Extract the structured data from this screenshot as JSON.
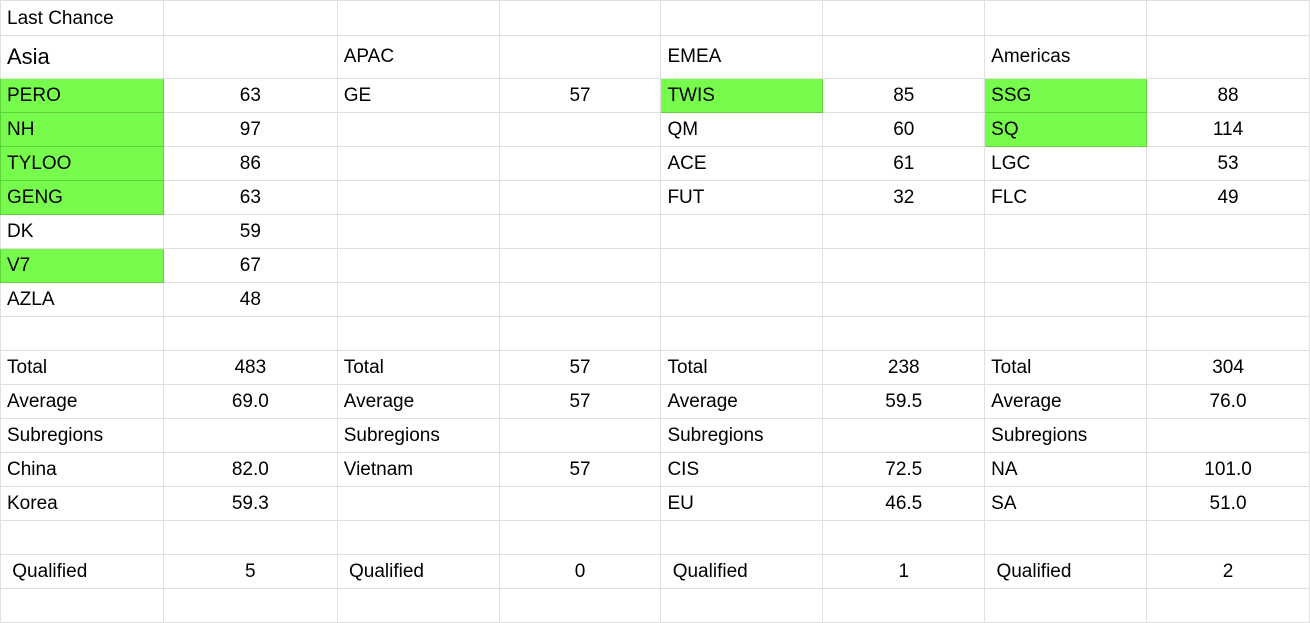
{
  "sheet": {
    "highlight_color": "#77fc4e",
    "rows": [
      [
        {
          "v": "Last Chance"
        },
        {
          "v": ""
        },
        {
          "v": ""
        },
        {
          "v": ""
        },
        {
          "v": ""
        },
        {
          "v": ""
        },
        {
          "v": ""
        },
        {
          "v": ""
        }
      ],
      [
        {
          "v": "Asia",
          "big": true
        },
        {
          "v": ""
        },
        {
          "v": "APAC"
        },
        {
          "v": ""
        },
        {
          "v": "EMEA"
        },
        {
          "v": ""
        },
        {
          "v": "Americas"
        },
        {
          "v": ""
        }
      ],
      [
        {
          "v": "PERO",
          "hl": true
        },
        {
          "v": "63"
        },
        {
          "v": "GE"
        },
        {
          "v": "57"
        },
        {
          "v": "TWIS",
          "hl": true
        },
        {
          "v": "85"
        },
        {
          "v": "SSG",
          "hl": true
        },
        {
          "v": "88"
        }
      ],
      [
        {
          "v": "NH",
          "hl": true
        },
        {
          "v": "97"
        },
        {
          "v": ""
        },
        {
          "v": ""
        },
        {
          "v": "QM"
        },
        {
          "v": "60"
        },
        {
          "v": "SQ",
          "hl": true
        },
        {
          "v": "114"
        }
      ],
      [
        {
          "v": "TYLOO",
          "hl": true
        },
        {
          "v": "86"
        },
        {
          "v": ""
        },
        {
          "v": ""
        },
        {
          "v": "ACE"
        },
        {
          "v": "61"
        },
        {
          "v": "LGC"
        },
        {
          "v": "53"
        }
      ],
      [
        {
          "v": "GENG",
          "hl": true
        },
        {
          "v": "63"
        },
        {
          "v": ""
        },
        {
          "v": ""
        },
        {
          "v": "FUT"
        },
        {
          "v": "32"
        },
        {
          "v": "FLC"
        },
        {
          "v": "49"
        }
      ],
      [
        {
          "v": "DK"
        },
        {
          "v": "59"
        },
        {
          "v": ""
        },
        {
          "v": ""
        },
        {
          "v": ""
        },
        {
          "v": ""
        },
        {
          "v": ""
        },
        {
          "v": ""
        }
      ],
      [
        {
          "v": "V7",
          "hl": true
        },
        {
          "v": "67"
        },
        {
          "v": ""
        },
        {
          "v": ""
        },
        {
          "v": ""
        },
        {
          "v": ""
        },
        {
          "v": ""
        },
        {
          "v": ""
        }
      ],
      [
        {
          "v": "AZLA"
        },
        {
          "v": "48"
        },
        {
          "v": ""
        },
        {
          "v": ""
        },
        {
          "v": ""
        },
        {
          "v": ""
        },
        {
          "v": ""
        },
        {
          "v": ""
        }
      ],
      [
        {
          "v": ""
        },
        {
          "v": ""
        },
        {
          "v": ""
        },
        {
          "v": ""
        },
        {
          "v": ""
        },
        {
          "v": ""
        },
        {
          "v": ""
        },
        {
          "v": ""
        }
      ],
      [
        {
          "v": "Total"
        },
        {
          "v": "483"
        },
        {
          "v": "Total"
        },
        {
          "v": "57"
        },
        {
          "v": "Total"
        },
        {
          "v": "238"
        },
        {
          "v": "Total"
        },
        {
          "v": "304"
        }
      ],
      [
        {
          "v": "Average"
        },
        {
          "v": "69.0"
        },
        {
          "v": "Average"
        },
        {
          "v": "57"
        },
        {
          "v": "Average"
        },
        {
          "v": "59.5"
        },
        {
          "v": "Average"
        },
        {
          "v": "76.0"
        }
      ],
      [
        {
          "v": "Subregions"
        },
        {
          "v": ""
        },
        {
          "v": "Subregions"
        },
        {
          "v": ""
        },
        {
          "v": "Subregions"
        },
        {
          "v": ""
        },
        {
          "v": "Subregions"
        },
        {
          "v": ""
        }
      ],
      [
        {
          "v": "China"
        },
        {
          "v": "82.0"
        },
        {
          "v": "Vietnam"
        },
        {
          "v": "57"
        },
        {
          "v": "CIS"
        },
        {
          "v": "72.5"
        },
        {
          "v": "NA"
        },
        {
          "v": "101.0"
        }
      ],
      [
        {
          "v": "Korea"
        },
        {
          "v": "59.3"
        },
        {
          "v": ""
        },
        {
          "v": ""
        },
        {
          "v": "EU"
        },
        {
          "v": "46.5"
        },
        {
          "v": "SA"
        },
        {
          "v": "51.0"
        }
      ],
      [
        {
          "v": ""
        },
        {
          "v": ""
        },
        {
          "v": ""
        },
        {
          "v": ""
        },
        {
          "v": ""
        },
        {
          "v": ""
        },
        {
          "v": ""
        },
        {
          "v": ""
        }
      ],
      [
        {
          "v": " Qualified"
        },
        {
          "v": "5"
        },
        {
          "v": " Qualified"
        },
        {
          "v": "0"
        },
        {
          "v": " Qualified"
        },
        {
          "v": "1"
        },
        {
          "v": " Qualified"
        },
        {
          "v": "2"
        }
      ],
      [
        {
          "v": ""
        },
        {
          "v": ""
        },
        {
          "v": ""
        },
        {
          "v": ""
        },
        {
          "v": ""
        },
        {
          "v": ""
        },
        {
          "v": ""
        },
        {
          "v": ""
        }
      ]
    ]
  }
}
